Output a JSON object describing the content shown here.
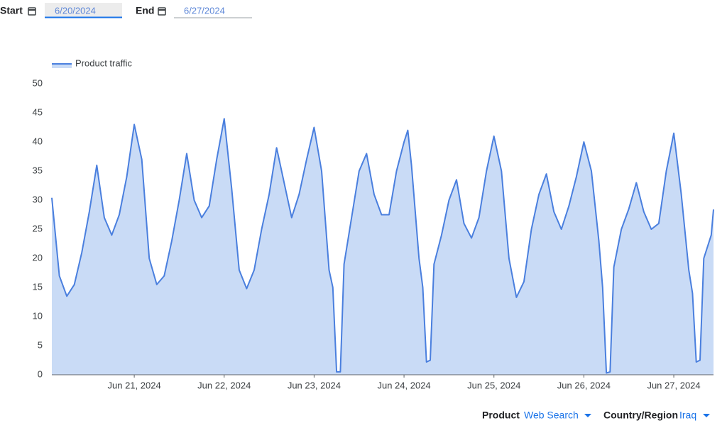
{
  "filters": {
    "start_label": "Start",
    "start_date": "6/20/2024",
    "end_label": "End",
    "end_date": "6/27/2024",
    "product_label": "Product",
    "product_value": "Web Search",
    "region_label": "Country/Region",
    "region_value": "Iraq"
  },
  "chart_data": {
    "type": "area",
    "x": [
      2,
      4,
      6,
      8,
      10,
      12,
      14,
      16,
      18,
      20,
      22,
      24,
      26,
      28,
      30,
      32,
      34,
      36,
      38,
      40,
      42,
      44,
      46,
      48,
      50,
      52,
      54,
      56,
      58,
      60,
      62,
      64,
      66,
      68,
      70,
      72,
      74,
      76,
      77,
      78,
      79,
      80,
      82,
      84,
      86,
      88,
      90,
      92,
      94,
      96,
      97,
      98,
      100,
      101,
      102,
      103,
      104,
      106,
      108,
      110,
      112,
      114,
      116,
      118,
      120,
      122,
      124,
      126,
      128,
      130,
      132,
      134,
      136,
      138,
      140,
      142,
      144,
      146,
      148,
      149,
      150,
      151,
      152,
      154,
      156,
      158,
      160,
      162,
      164,
      166,
      168,
      170,
      172,
      173,
      174,
      175,
      176,
      178,
      178.6
    ],
    "series": [
      {
        "name": "Product traffic",
        "color": "#4a7fde",
        "values": [
          30.4,
          17,
          13.5,
          15.5,
          21,
          28,
          36,
          27,
          24,
          27.5,
          34,
          43,
          37,
          20,
          15.5,
          17,
          23,
          30,
          38,
          30,
          27,
          29,
          37,
          44,
          32,
          18,
          14.8,
          18,
          25,
          31,
          39,
          33,
          27,
          31,
          37,
          42.5,
          35,
          18,
          15,
          0.5,
          0.5,
          19,
          27,
          35,
          38,
          31,
          27.5,
          27.5,
          35,
          40,
          42,
          36,
          20,
          15,
          2.2,
          2.5,
          19,
          24,
          30,
          33.5,
          26,
          23.5,
          27,
          35,
          41,
          35,
          20,
          13.3,
          16,
          25,
          31,
          34.5,
          28,
          25,
          29,
          34,
          40,
          35,
          23,
          15,
          0.3,
          0.5,
          18.5,
          25,
          28.5,
          33,
          28,
          25,
          26,
          35,
          41.5,
          31,
          18,
          14,
          2.2,
          2.5,
          20,
          24,
          28.4
        ]
      }
    ],
    "xlim": [
      2,
      178.6
    ],
    "xticks": [
      {
        "value": 24,
        "label": "Jun 21, 2024"
      },
      {
        "value": 48,
        "label": "Jun 22, 2024"
      },
      {
        "value": 72,
        "label": "Jun 23, 2024"
      },
      {
        "value": 96,
        "label": "Jun 24, 2024"
      },
      {
        "value": 120,
        "label": "Jun 25, 2024"
      },
      {
        "value": 144,
        "label": "Jun 26, 2024"
      },
      {
        "value": 168,
        "label": "Jun 27, 2024"
      }
    ],
    "ylim": [
      0,
      50
    ],
    "yticks": [
      0,
      5,
      10,
      15,
      20,
      25,
      30,
      35,
      40,
      45,
      50
    ],
    "area_color": "#c9dbf6",
    "grid": false,
    "legend": "top-left"
  }
}
